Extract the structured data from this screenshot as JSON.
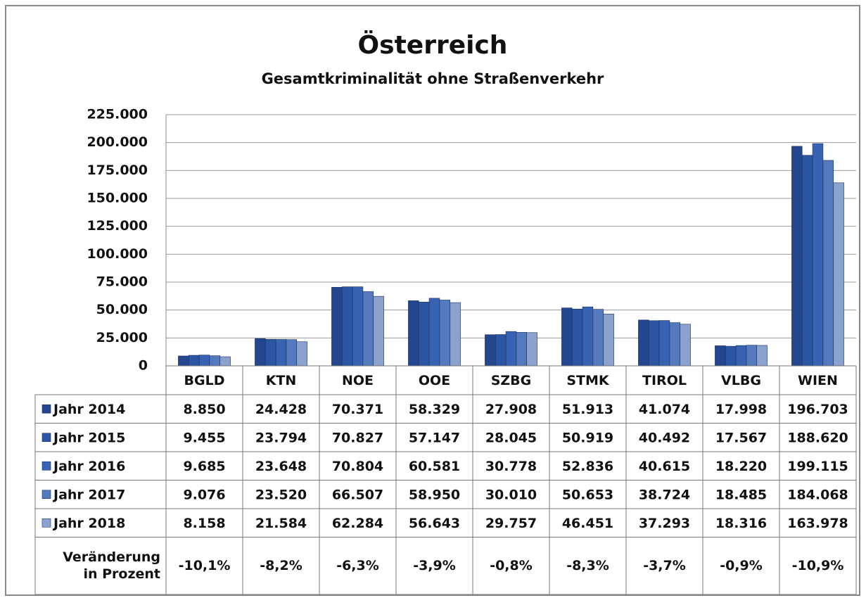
{
  "chart_data": {
    "type": "bar",
    "title": "Österreich",
    "subtitle": "Gesamtkriminalität ohne Straßenverkehr",
    "categories": [
      "BGLD",
      "KTN",
      "NOE",
      "OOE",
      "SZBG",
      "STMK",
      "TIROL",
      "VLBG",
      "WIEN"
    ],
    "series": [
      {
        "name": "Jahr 2014",
        "color": "#24468f",
        "values": [
          8850,
          24428,
          70371,
          58329,
          27908,
          51913,
          41074,
          17998,
          196703
        ],
        "value_labels": [
          "8.850",
          "24.428",
          "70.371",
          "58.329",
          "27.908",
          "51.913",
          "41.074",
          "17.998",
          "196.703"
        ]
      },
      {
        "name": "Jahr 2015",
        "color": "#2c55a3",
        "values": [
          9455,
          23794,
          70827,
          57147,
          28045,
          50919,
          40492,
          17567,
          188620
        ],
        "value_labels": [
          "9.455",
          "23.794",
          "70.827",
          "57.147",
          "28.045",
          "50.919",
          "40.492",
          "17.567",
          "188.620"
        ]
      },
      {
        "name": "Jahr 2016",
        "color": "#3863b3",
        "values": [
          9685,
          23648,
          70804,
          60581,
          30778,
          52836,
          40615,
          18220,
          199115
        ],
        "value_labels": [
          "9.685",
          "23.648",
          "70.804",
          "60.581",
          "30.778",
          "52.836",
          "40.615",
          "18.220",
          "199.115"
        ]
      },
      {
        "name": "Jahr 2017",
        "color": "#5479bd",
        "values": [
          9076,
          23520,
          66507,
          58950,
          30010,
          50653,
          38724,
          18485,
          184068
        ],
        "value_labels": [
          "9.076",
          "23.520",
          "66.507",
          "58.950",
          "30.010",
          "50.653",
          "38.724",
          "18.485",
          "184.068"
        ]
      },
      {
        "name": "Jahr 2018",
        "color": "#8ba2cf",
        "values": [
          8158,
          21584,
          62284,
          56643,
          29757,
          46451,
          37293,
          18316,
          163978
        ],
        "value_labels": [
          "8.158",
          "21.584",
          "62.284",
          "56.643",
          "29.757",
          "46.451",
          "37.293",
          "18.316",
          "163.978"
        ]
      }
    ],
    "change_label": [
      "Veränderung",
      "in Prozent"
    ],
    "changes": {
      "values": [
        -10.1,
        -8.2,
        -6.3,
        -3.9,
        -0.8,
        -8.3,
        -3.7,
        -0.9,
        -10.9
      ],
      "value_labels": [
        "-10,1%",
        "-8,2%",
        "-6,3%",
        "-3,9%",
        "-0,8%",
        "-8,3%",
        "-3,7%",
        "-0,9%",
        "-10,9%"
      ]
    },
    "ylim": [
      0,
      225000
    ],
    "yticks": [
      0,
      {
        "value": 25000,
        "label": "25.000"
      },
      {
        "value": 50000,
        "label": "50.000"
      },
      {
        "value": 75000,
        "label": "75.000"
      },
      {
        "value": 100000,
        "label": "100.000"
      },
      {
        "value": 125000,
        "label": "125.000"
      },
      {
        "value": 150000,
        "label": "150.000"
      },
      {
        "value": 175000,
        "label": "175.000"
      },
      {
        "value": 200000,
        "label": "200.000"
      },
      {
        "value": 225000,
        "label": "225.000"
      }
    ],
    "grid": true
  }
}
